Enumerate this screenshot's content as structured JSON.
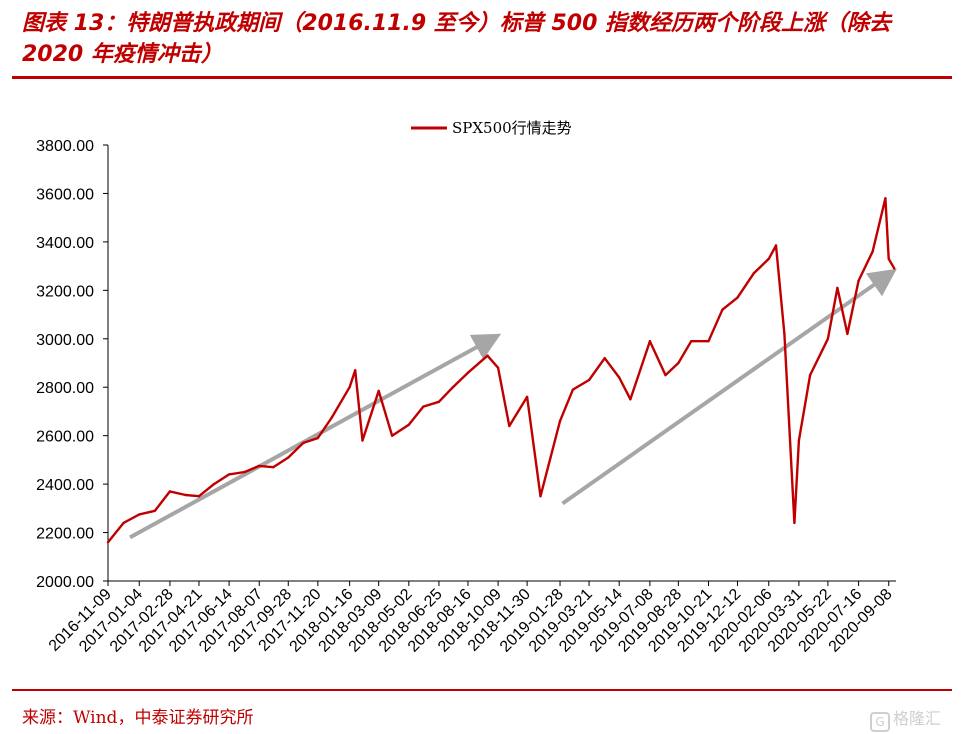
{
  "header": {
    "title": "图表 13：特朗普执政期间（2016.11.9 至今）标普 500 指数经历两个阶段上涨（除去 2020 年疫情冲击）"
  },
  "footer": {
    "source": "来源：Wind，中泰证券研究所",
    "watermark": "格隆汇"
  },
  "colors": {
    "accent": "#c00000",
    "series": "#c00000",
    "arrow": "#a6a6a6"
  },
  "chart_data": {
    "type": "line",
    "title": "",
    "xlabel": "",
    "ylabel": "",
    "ylim": [
      2000,
      3800
    ],
    "yticks": [
      "2000.00",
      "2200.00",
      "2400.00",
      "2600.00",
      "2800.00",
      "3000.00",
      "3200.00",
      "3400.00",
      "3600.00",
      "3800.00"
    ],
    "xticks": [
      "2016-11-09",
      "2017-01-04",
      "2017-02-28",
      "2017-04-21",
      "2017-06-14",
      "2017-08-07",
      "2017-09-28",
      "2017-11-20",
      "2018-01-16",
      "2018-03-09",
      "2018-05-02",
      "2018-06-25",
      "2018-08-16",
      "2018-10-09",
      "2018-11-30",
      "2019-01-28",
      "2019-03-21",
      "2019-05-14",
      "2019-07-08",
      "2019-08-28",
      "2019-10-21",
      "2019-12-12",
      "2020-02-06",
      "2020-03-31",
      "2020-05-22",
      "2020-07-16",
      "2020-09-08"
    ],
    "legend": {
      "position": "top-center"
    },
    "grid": false,
    "series": [
      {
        "name": "SPX500行情走势",
        "x": [
          "2016-11-09",
          "2016-12-07",
          "2017-01-04",
          "2017-02-01",
          "2017-02-28",
          "2017-03-28",
          "2017-04-21",
          "2017-05-18",
          "2017-06-14",
          "2017-07-12",
          "2017-08-07",
          "2017-09-01",
          "2017-09-28",
          "2017-10-25",
          "2017-11-20",
          "2017-12-15",
          "2018-01-16",
          "2018-01-26",
          "2018-02-08",
          "2018-03-09",
          "2018-04-02",
          "2018-05-02",
          "2018-05-28",
          "2018-06-25",
          "2018-07-20",
          "2018-08-16",
          "2018-09-20",
          "2018-10-09",
          "2018-10-29",
          "2018-11-30",
          "2018-12-24",
          "2019-01-28",
          "2019-02-20",
          "2019-03-21",
          "2019-04-18",
          "2019-05-14",
          "2019-06-03",
          "2019-07-08",
          "2019-08-05",
          "2019-08-28",
          "2019-09-20",
          "2019-10-21",
          "2019-11-15",
          "2019-12-12",
          "2020-01-10",
          "2020-02-06",
          "2020-02-19",
          "2020-03-05",
          "2020-03-23",
          "2020-03-31",
          "2020-04-20",
          "2020-05-22",
          "2020-06-08",
          "2020-06-26",
          "2020-07-16",
          "2020-08-10",
          "2020-09-02",
          "2020-09-08",
          "2020-09-18"
        ],
        "values": [
          2160,
          2240,
          2275,
          2290,
          2370,
          2355,
          2350,
          2400,
          2440,
          2450,
          2475,
          2470,
          2510,
          2570,
          2590,
          2675,
          2800,
          2870,
          2580,
          2785,
          2600,
          2645,
          2720,
          2740,
          2800,
          2860,
          2930,
          2880,
          2640,
          2760,
          2350,
          2660,
          2790,
          2830,
          2920,
          2840,
          2750,
          2990,
          2850,
          2900,
          2990,
          2990,
          3120,
          3170,
          3270,
          3330,
          3385,
          3020,
          2240,
          2580,
          2850,
          3000,
          3210,
          3020,
          3240,
          3360,
          3580,
          3330,
          3290
        ]
      }
    ],
    "annotations": [
      {
        "type": "arrow",
        "from": [
          "2016-11-09",
          2180
        ],
        "to": [
          "2018-10-09",
          3005
        ]
      },
      {
        "type": "arrow",
        "from": [
          "2018-12-24",
          2320
        ],
        "to": [
          "2020-09-18",
          3270
        ]
      }
    ]
  }
}
